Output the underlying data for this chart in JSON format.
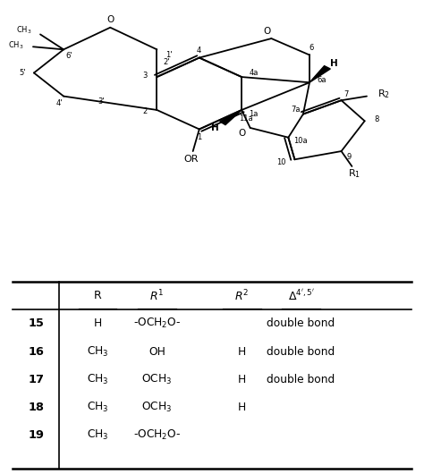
{
  "fig_width": 4.74,
  "fig_height": 5.3,
  "dpi": 100,
  "bg_color": "#ffffff",
  "lw": 1.3,
  "rows": [
    [
      "15",
      "H",
      "-OCH$_2$O-",
      "",
      "double bond"
    ],
    [
      "16",
      "CH$_3$",
      "OH",
      "H",
      "double bond"
    ],
    [
      "17",
      "CH$_3$",
      "OCH$_3$",
      "H",
      "double bond"
    ],
    [
      "18",
      "CH$_3$",
      "OCH$_3$",
      "H",
      ""
    ],
    [
      "19",
      "CH$_3$",
      "-OCH$_2$O-",
      "",
      ""
    ]
  ]
}
